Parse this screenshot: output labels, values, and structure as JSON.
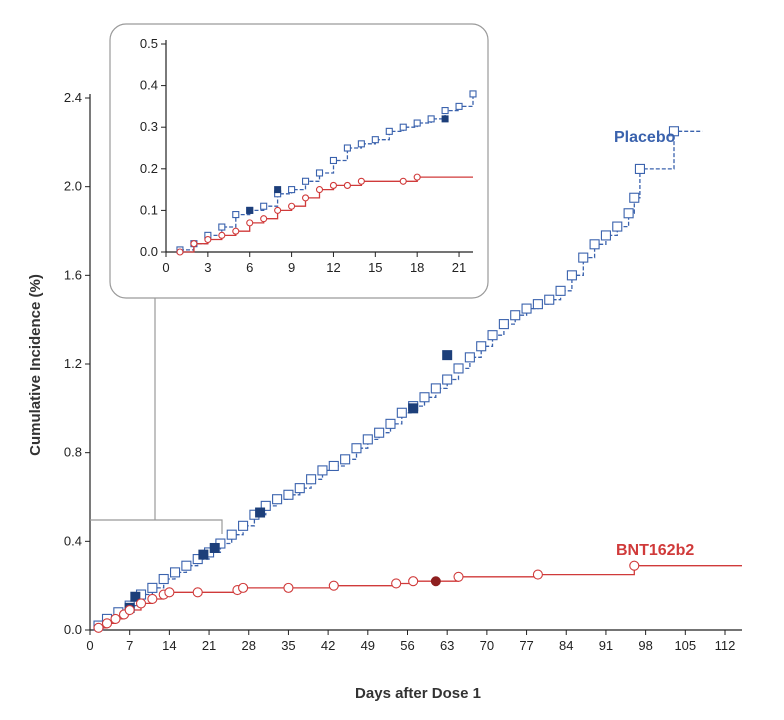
{
  "chart_data": [
    {
      "type": "line",
      "title": "",
      "xlabel": "Days after Dose 1",
      "ylabel": "Cumulative Incidence (%)",
      "xlim": [
        0,
        115
      ],
      "ylim": [
        0,
        2.4
      ],
      "x_ticks": [
        "0",
        "7",
        "14",
        "21",
        "28",
        "35",
        "42",
        "49",
        "56",
        "63",
        "70",
        "77",
        "84",
        "91",
        "98",
        "105",
        "112"
      ],
      "y_ticks": [
        "0.0",
        "0.4",
        "0.8",
        "1.2",
        "1.6",
        "2.0",
        "2.4"
      ],
      "series": [
        {
          "name": "Placebo",
          "color": "#3a62ad",
          "style": "dashed-step",
          "marker": "open-square",
          "points": [
            [
              1.5,
              0.02
            ],
            [
              3,
              0.05
            ],
            [
              5,
              0.08
            ],
            [
              7,
              0.11
            ],
            [
              9,
              0.16
            ],
            [
              11,
              0.19
            ],
            [
              13,
              0.23
            ],
            [
              15,
              0.26
            ],
            [
              17,
              0.29
            ],
            [
              19,
              0.32
            ],
            [
              21,
              0.35
            ],
            [
              23,
              0.39
            ],
            [
              25,
              0.43
            ],
            [
              27,
              0.47
            ],
            [
              29,
              0.52
            ],
            [
              31,
              0.56
            ],
            [
              33,
              0.59
            ],
            [
              35,
              0.61
            ],
            [
              37,
              0.64
            ],
            [
              39,
              0.68
            ],
            [
              41,
              0.72
            ],
            [
              43,
              0.74
            ],
            [
              45,
              0.77
            ],
            [
              47,
              0.82
            ],
            [
              49,
              0.86
            ],
            [
              51,
              0.89
            ],
            [
              53,
              0.93
            ],
            [
              55,
              0.98
            ],
            [
              57,
              1.01
            ],
            [
              59,
              1.05
            ],
            [
              61,
              1.09
            ],
            [
              63,
              1.13
            ],
            [
              65,
              1.18
            ],
            [
              67,
              1.23
            ],
            [
              69,
              1.28
            ],
            [
              71,
              1.33
            ],
            [
              73,
              1.38
            ],
            [
              75,
              1.42
            ],
            [
              77,
              1.45
            ],
            [
              79,
              1.47
            ],
            [
              81,
              1.49
            ],
            [
              83,
              1.53
            ],
            [
              85,
              1.6
            ],
            [
              87,
              1.68
            ],
            [
              89,
              1.74
            ],
            [
              91,
              1.78
            ],
            [
              93,
              1.82
            ],
            [
              95,
              1.88
            ],
            [
              96,
              1.95
            ],
            [
              97,
              2.08
            ],
            [
              103,
              2.25
            ],
            [
              108,
              2.25
            ]
          ],
          "filled_points": [
            [
              7,
              0.1
            ],
            [
              8,
              0.15
            ],
            [
              20,
              0.34
            ],
            [
              22,
              0.37
            ],
            [
              30,
              0.53
            ],
            [
              57,
              1.0
            ],
            [
              63,
              1.24
            ]
          ]
        },
        {
          "name": "BNT162b2",
          "color": "#d03a3a",
          "style": "solid-step",
          "marker": "open-circle",
          "points": [
            [
              1.5,
              0.01
            ],
            [
              3,
              0.03
            ],
            [
              4.5,
              0.05
            ],
            [
              6,
              0.07
            ],
            [
              7,
              0.09
            ],
            [
              9,
              0.12
            ],
            [
              11,
              0.14
            ],
            [
              13,
              0.16
            ],
            [
              14,
              0.17
            ],
            [
              19,
              0.17
            ],
            [
              26,
              0.18
            ],
            [
              27,
              0.19
            ],
            [
              35,
              0.19
            ],
            [
              43,
              0.2
            ],
            [
              54,
              0.21
            ],
            [
              57,
              0.22
            ],
            [
              65,
              0.24
            ],
            [
              79,
              0.25
            ],
            [
              96,
              0.29
            ],
            [
              115,
              0.29
            ]
          ],
          "filled_points": [
            [
              61,
              0.22
            ]
          ]
        }
      ]
    },
    {
      "type": "line",
      "title": "",
      "xlabel": "",
      "ylabel": "",
      "xlim": [
        0,
        22
      ],
      "ylim": [
        0,
        0.5
      ],
      "x_ticks": [
        "0",
        "3",
        "6",
        "9",
        "12",
        "15",
        "18",
        "21"
      ],
      "y_ticks": [
        "0.0",
        "0.1",
        "0.2",
        "0.3",
        "0.4",
        "0.5"
      ],
      "series": [
        {
          "name": "Placebo",
          "color": "#3a62ad",
          "style": "dashed-step",
          "marker": "open-square",
          "points": [
            [
              1,
              0.005
            ],
            [
              2,
              0.02
            ],
            [
              3,
              0.04
            ],
            [
              4,
              0.06
            ],
            [
              5,
              0.09
            ],
            [
              6,
              0.1
            ],
            [
              7,
              0.11
            ],
            [
              8,
              0.14
            ],
            [
              9,
              0.15
            ],
            [
              10,
              0.17
            ],
            [
              11,
              0.19
            ],
            [
              12,
              0.22
            ],
            [
              13,
              0.25
            ],
            [
              14,
              0.26
            ],
            [
              15,
              0.27
            ],
            [
              16,
              0.29
            ],
            [
              17,
              0.3
            ],
            [
              18,
              0.31
            ],
            [
              19,
              0.32
            ],
            [
              20,
              0.34
            ],
            [
              21,
              0.35
            ],
            [
              22,
              0.38
            ]
          ],
          "filled_points": [
            [
              6,
              0.1
            ],
            [
              8,
              0.15
            ],
            [
              20,
              0.32
            ]
          ]
        },
        {
          "name": "BNT162b2",
          "color": "#d03a3a",
          "style": "solid-step",
          "marker": "open-circle",
          "points": [
            [
              1,
              0.0
            ],
            [
              2,
              0.02
            ],
            [
              3,
              0.03
            ],
            [
              4,
              0.04
            ],
            [
              5,
              0.05
            ],
            [
              6,
              0.07
            ],
            [
              7,
              0.08
            ],
            [
              8,
              0.1
            ],
            [
              9,
              0.11
            ],
            [
              10,
              0.13
            ],
            [
              11,
              0.15
            ],
            [
              12,
              0.16
            ],
            [
              13,
              0.16
            ],
            [
              14,
              0.17
            ],
            [
              17,
              0.17
            ],
            [
              18,
              0.18
            ],
            [
              22,
              0.18
            ]
          ],
          "filled_points": []
        }
      ]
    }
  ]
}
